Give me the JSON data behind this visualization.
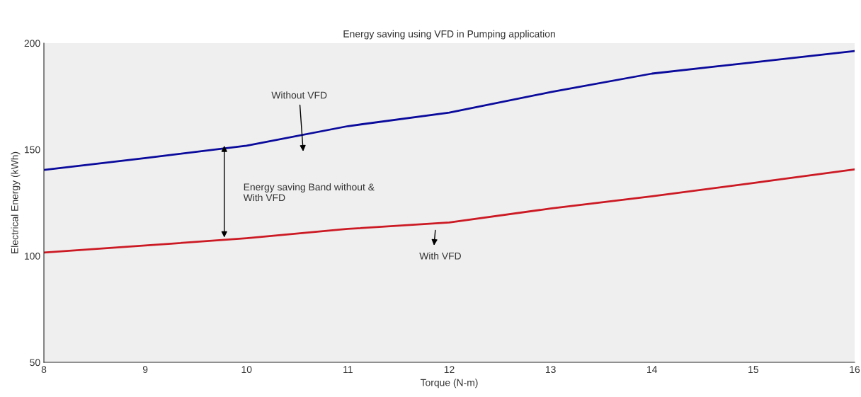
{
  "chart_data": {
    "type": "line",
    "title": "Energy saving using VFD in Pumping application",
    "xlabel": "Torque (N-m)",
    "ylabel": "Electrical Energy (kWh)",
    "x": [
      8,
      9,
      10,
      11,
      12,
      13,
      14,
      15,
      16
    ],
    "series": [
      {
        "color": "#0a0a9c",
        "values": [
          140.4,
          146,
          151.8,
          161,
          167.4,
          177,
          185.7,
          191,
          196.3
        ]
      },
      {
        "color": "#cc1a24",
        "values": [
          101.6,
          104.9,
          108.3,
          112.7,
          115.7,
          122.3,
          128,
          134.3,
          140.7
        ]
      }
    ],
    "annotations": [
      "Without VFD",
      "Energy saving Band without &\nWith VFD",
      "With VFD"
    ],
    "xlim": [
      8,
      16
    ],
    "xticks": [
      8,
      9,
      10,
      11,
      12,
      13,
      14,
      15,
      16
    ],
    "ylim": [
      50,
      200
    ],
    "yticks": [
      50,
      100,
      150,
      200
    ],
    "grid": false,
    "legend": false,
    "marker": "none",
    "line_style": "solid"
  }
}
